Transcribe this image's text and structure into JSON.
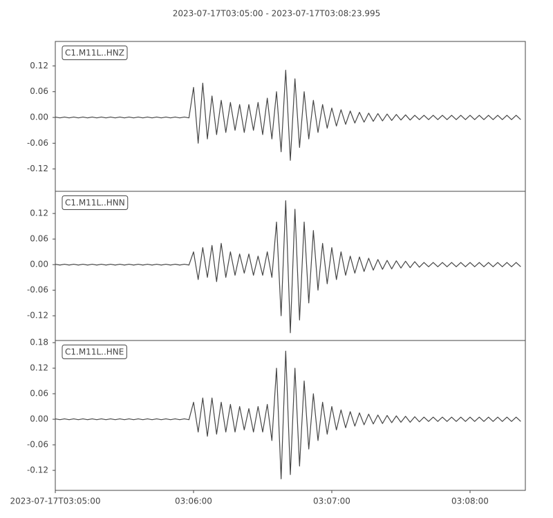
{
  "title": "2023-07-17T03:05:00  -  2023-07-17T03:08:23.995",
  "chart_data": [
    {
      "type": "line",
      "label": "C1.M11L..HNZ",
      "color": "#444444",
      "xlim": [
        0,
        203.995
      ],
      "ylim": [
        -0.172,
        0.177
      ],
      "yticks": [
        {
          "value": -0.12,
          "label": "-0.12"
        },
        {
          "value": -0.06,
          "label": "-0.06"
        },
        {
          "value": 0,
          "label": "0.00"
        },
        {
          "value": 0.06,
          "label": "0.06"
        },
        {
          "value": 0.12,
          "label": "0.12"
        }
      ],
      "x": [
        0,
        2,
        4,
        6,
        8,
        10,
        12,
        14,
        16,
        18,
        20,
        22,
        24,
        26,
        28,
        30,
        32,
        34,
        36,
        38,
        40,
        42,
        44,
        46,
        48,
        50,
        52,
        54,
        56,
        58,
        60,
        62,
        64,
        66,
        68,
        70,
        72,
        74,
        76,
        78,
        80,
        82,
        84,
        86,
        88,
        90,
        92,
        94,
        96,
        98,
        100,
        102,
        104,
        106,
        108,
        110,
        112,
        114,
        116,
        118,
        120,
        122,
        124,
        126,
        128,
        130,
        132,
        134,
        136,
        138,
        140,
        142,
        144,
        146,
        148,
        150,
        152,
        154,
        156,
        158,
        160,
        162,
        164,
        166,
        168,
        170,
        172,
        174,
        176,
        178,
        180,
        182,
        184,
        186,
        188,
        190,
        192,
        194,
        196,
        198,
        200,
        202
      ],
      "values": [
        0.001,
        -0.001,
        0.001,
        -0.001,
        0.001,
        -0.001,
        0.001,
        -0.001,
        0.001,
        -0.001,
        0.001,
        -0.001,
        0.001,
        -0.001,
        0.001,
        -0.001,
        0.001,
        -0.001,
        0.001,
        -0.001,
        0.001,
        -0.001,
        0.001,
        -0.001,
        0.001,
        -0.001,
        0.001,
        -0.001,
        0.001,
        -0.001,
        0.07,
        -0.06,
        0.08,
        -0.05,
        0.05,
        -0.04,
        0.04,
        -0.035,
        0.035,
        -0.03,
        0.03,
        -0.035,
        0.03,
        -0.03,
        0.035,
        -0.04,
        0.045,
        -0.05,
        0.06,
        -0.08,
        0.11,
        -0.1,
        0.09,
        -0.07,
        0.06,
        -0.05,
        0.04,
        -0.035,
        0.03,
        -0.025,
        0.022,
        -0.02,
        0.018,
        -0.016,
        0.015,
        -0.013,
        0.012,
        -0.011,
        0.01,
        -0.009,
        0.009,
        -0.008,
        0.008,
        -0.007,
        0.007,
        -0.006,
        0.006,
        -0.006,
        0.005,
        -0.005,
        0.005,
        -0.005,
        0.005,
        -0.005,
        0.005,
        -0.005,
        0.005,
        -0.005,
        0.005,
        -0.005,
        0.005,
        -0.005,
        0.005,
        -0.005,
        0.005,
        -0.005,
        0.005,
        -0.005,
        0.005,
        -0.005,
        0.005,
        -0.005
      ]
    },
    {
      "type": "line",
      "label": "C1.M11L..HNN",
      "color": "#444444",
      "xlim": [
        0,
        203.995
      ],
      "ylim": [
        -0.178,
        0.172
      ],
      "yticks": [
        {
          "value": -0.12,
          "label": "-0.12"
        },
        {
          "value": -0.06,
          "label": "-0.06"
        },
        {
          "value": 0,
          "label": "0.00"
        },
        {
          "value": 0.06,
          "label": "0.06"
        },
        {
          "value": 0.12,
          "label": "0.12"
        }
      ],
      "x": [
        0,
        2,
        4,
        6,
        8,
        10,
        12,
        14,
        16,
        18,
        20,
        22,
        24,
        26,
        28,
        30,
        32,
        34,
        36,
        38,
        40,
        42,
        44,
        46,
        48,
        50,
        52,
        54,
        56,
        58,
        60,
        62,
        64,
        66,
        68,
        70,
        72,
        74,
        76,
        78,
        80,
        82,
        84,
        86,
        88,
        90,
        92,
        94,
        96,
        98,
        100,
        102,
        104,
        106,
        108,
        110,
        112,
        114,
        116,
        118,
        120,
        122,
        124,
        126,
        128,
        130,
        132,
        134,
        136,
        138,
        140,
        142,
        144,
        146,
        148,
        150,
        152,
        154,
        156,
        158,
        160,
        162,
        164,
        166,
        168,
        170,
        172,
        174,
        176,
        178,
        180,
        182,
        184,
        186,
        188,
        190,
        192,
        194,
        196,
        198,
        200,
        202
      ],
      "values": [
        0.001,
        -0.001,
        0.001,
        -0.001,
        0.001,
        -0.001,
        0.001,
        -0.001,
        0.001,
        -0.001,
        0.001,
        -0.001,
        0.001,
        -0.001,
        0.001,
        -0.001,
        0.001,
        -0.001,
        0.001,
        -0.001,
        0.001,
        -0.001,
        0.001,
        -0.001,
        0.001,
        -0.001,
        0.001,
        -0.001,
        0.001,
        -0.001,
        0.03,
        -0.035,
        0.04,
        -0.03,
        0.045,
        -0.04,
        0.05,
        -0.03,
        0.03,
        -0.025,
        0.025,
        -0.02,
        0.025,
        -0.025,
        0.02,
        -0.025,
        0.03,
        -0.03,
        0.1,
        -0.12,
        0.15,
        -0.16,
        0.13,
        -0.13,
        0.1,
        -0.09,
        0.08,
        -0.06,
        0.05,
        -0.045,
        0.04,
        -0.035,
        0.03,
        -0.025,
        0.02,
        -0.02,
        0.018,
        -0.016,
        0.015,
        -0.013,
        0.012,
        -0.011,
        0.01,
        -0.01,
        0.009,
        -0.008,
        0.008,
        -0.007,
        0.007,
        -0.006,
        0.005,
        -0.005,
        0.005,
        -0.005,
        0.005,
        -0.005,
        0.005,
        -0.005,
        0.005,
        -0.005,
        0.005,
        -0.005,
        0.005,
        -0.005,
        0.005,
        -0.005,
        0.005,
        -0.005,
        0.005,
        -0.005,
        0.005,
        -0.005
      ]
    },
    {
      "type": "line",
      "label": "C1.M11L..HNE",
      "color": "#444444",
      "xlim": [
        0,
        203.995
      ],
      "ylim": [
        -0.167,
        0.185
      ],
      "yticks": [
        {
          "value": -0.12,
          "label": "-0.12"
        },
        {
          "value": -0.06,
          "label": "-0.06"
        },
        {
          "value": 0,
          "label": "0.00"
        },
        {
          "value": 0.06,
          "label": "0.06"
        },
        {
          "value": 0.12,
          "label": "0.12"
        },
        {
          "value": 0.18,
          "label": "0.18"
        }
      ],
      "xticks": [
        {
          "value": 0,
          "label": "2023-07-17T03:05:00"
        },
        {
          "value": 60,
          "label": "03:06:00"
        },
        {
          "value": 120,
          "label": "03:07:00"
        },
        {
          "value": 180,
          "label": "03:08:00"
        }
      ],
      "x": [
        0,
        2,
        4,
        6,
        8,
        10,
        12,
        14,
        16,
        18,
        20,
        22,
        24,
        26,
        28,
        30,
        32,
        34,
        36,
        38,
        40,
        42,
        44,
        46,
        48,
        50,
        52,
        54,
        56,
        58,
        60,
        62,
        64,
        66,
        68,
        70,
        72,
        74,
        76,
        78,
        80,
        82,
        84,
        86,
        88,
        90,
        92,
        94,
        96,
        98,
        100,
        102,
        104,
        106,
        108,
        110,
        112,
        114,
        116,
        118,
        120,
        122,
        124,
        126,
        128,
        130,
        132,
        134,
        136,
        138,
        140,
        142,
        144,
        146,
        148,
        150,
        152,
        154,
        156,
        158,
        160,
        162,
        164,
        166,
        168,
        170,
        172,
        174,
        176,
        178,
        180,
        182,
        184,
        186,
        188,
        190,
        192,
        194,
        196,
        198,
        200,
        202
      ],
      "values": [
        0.001,
        -0.001,
        0.001,
        -0.001,
        0.001,
        -0.001,
        0.001,
        -0.001,
        0.001,
        -0.001,
        0.001,
        -0.001,
        0.001,
        -0.001,
        0.001,
        -0.001,
        0.001,
        -0.001,
        0.001,
        -0.001,
        0.001,
        -0.001,
        0.001,
        -0.001,
        0.001,
        -0.001,
        0.001,
        -0.001,
        0.001,
        -0.001,
        0.04,
        -0.03,
        0.05,
        -0.04,
        0.05,
        -0.035,
        0.04,
        -0.03,
        0.035,
        -0.03,
        0.03,
        -0.025,
        0.025,
        -0.03,
        0.03,
        -0.03,
        0.035,
        -0.05,
        0.12,
        -0.14,
        0.16,
        -0.13,
        0.12,
        -0.11,
        0.09,
        -0.07,
        0.06,
        -0.05,
        0.04,
        -0.035,
        0.03,
        -0.025,
        0.022,
        -0.02,
        0.018,
        -0.016,
        0.015,
        -0.013,
        0.012,
        -0.011,
        0.01,
        -0.01,
        0.009,
        -0.008,
        0.008,
        -0.007,
        0.007,
        -0.007,
        0.006,
        -0.006,
        0.005,
        -0.005,
        0.005,
        -0.005,
        0.005,
        -0.005,
        0.005,
        -0.005,
        0.005,
        -0.005,
        0.005,
        -0.005,
        0.005,
        -0.005,
        0.005,
        -0.005,
        0.005,
        -0.005,
        0.005,
        -0.005,
        0.005,
        -0.005
      ]
    }
  ]
}
